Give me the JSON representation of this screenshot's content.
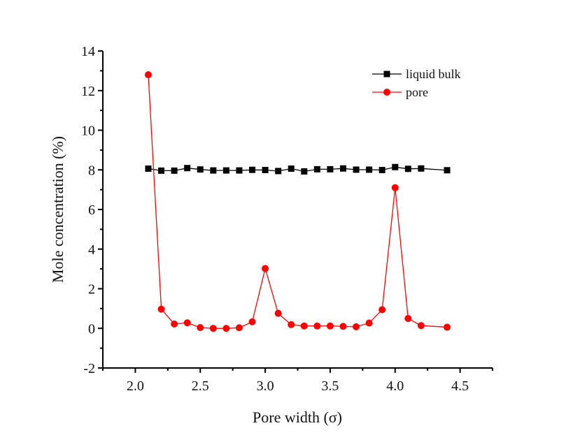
{
  "chart_data": {
    "type": "line",
    "title": "",
    "xlabel": "Pore width (σ)",
    "ylabel": "Mole concentration (%)",
    "xlim": [
      1.75,
      4.75
    ],
    "ylim": [
      -2,
      14
    ],
    "xticks": [
      2.0,
      2.5,
      3.0,
      3.5,
      4.0,
      4.5
    ],
    "xtick_labels": [
      "2.0",
      "2.5",
      "3.0",
      "3.5",
      "4.0",
      "4.5"
    ],
    "yticks": [
      -2,
      0,
      2,
      4,
      6,
      8,
      10,
      12,
      14
    ],
    "ytick_labels": [
      "-2",
      "0",
      "2",
      "4",
      "6",
      "8",
      "10",
      "12",
      "14"
    ],
    "grid": false,
    "legend_position": "top-right",
    "x": [
      2.1,
      2.2,
      2.3,
      2.4,
      2.5,
      2.6,
      2.7,
      2.8,
      2.9,
      3.0,
      3.1,
      3.2,
      3.3,
      3.4,
      3.5,
      3.6,
      3.7,
      3.8,
      3.9,
      4.0,
      4.1,
      4.2,
      4.4
    ],
    "series": [
      {
        "name": "liquid bulk",
        "color": "#000000",
        "marker": "square",
        "values": [
          8.06,
          7.96,
          7.96,
          8.09,
          8.02,
          7.97,
          7.97,
          7.97,
          8.0,
          7.99,
          7.94,
          8.06,
          7.92,
          8.03,
          8.03,
          8.07,
          8.01,
          8.01,
          7.99,
          8.14,
          8.05,
          8.07,
          7.98
        ]
      },
      {
        "name": "pore",
        "color": "#ff0000",
        "marker": "circle",
        "values": [
          12.8,
          0.97,
          0.22,
          0.28,
          0.04,
          0.0,
          0.0,
          0.03,
          0.33,
          3.02,
          0.76,
          0.19,
          0.12,
          0.12,
          0.12,
          0.1,
          0.08,
          0.27,
          0.94,
          7.1,
          0.5,
          0.14,
          0.06
        ]
      }
    ]
  }
}
